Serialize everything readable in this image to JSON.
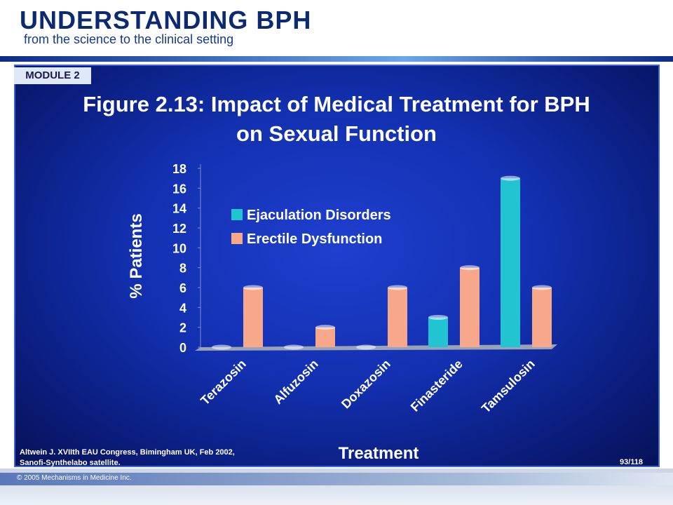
{
  "header": {
    "brand": "UNDERSTANDING BPH",
    "tagline": "from the science to the clinical setting",
    "module": "MODULE 2"
  },
  "figure": {
    "title_line1": "Figure 2.13: Impact of Medical Treatment for BPH",
    "title_line2": "on Sexual Function"
  },
  "colors": {
    "ejaculation": "#22c4d2",
    "erectile": "#f7a88a"
  },
  "chart_data": {
    "type": "bar",
    "categories": [
      "Terazosin",
      "Alfuzosin",
      "Doxazosin",
      "Finasteride",
      "Tamsulosin"
    ],
    "series": [
      {
        "name": "Ejaculation Disorders",
        "values": [
          0,
          0,
          0,
          3,
          17
        ]
      },
      {
        "name": "Erectile Dysfunction",
        "values": [
          6,
          2,
          6,
          8,
          6
        ]
      }
    ],
    "xlabel": "Treatment",
    "ylabel": "% Patients",
    "ylim": [
      0,
      18
    ],
    "yticks": [
      "0",
      "2",
      "4",
      "6",
      "8",
      "10",
      "12",
      "14",
      "16",
      "18"
    ],
    "legend_position": "top-left"
  },
  "footer": {
    "source_line1": "Altwein J. XVIIth EAU Congress, Bimingham UK, Feb 2002,",
    "source_line2": "Sanofi-Synthelabo satellite.",
    "page": "93/118",
    "copyright": "© 2005 Mechanisms in Medicine Inc."
  }
}
